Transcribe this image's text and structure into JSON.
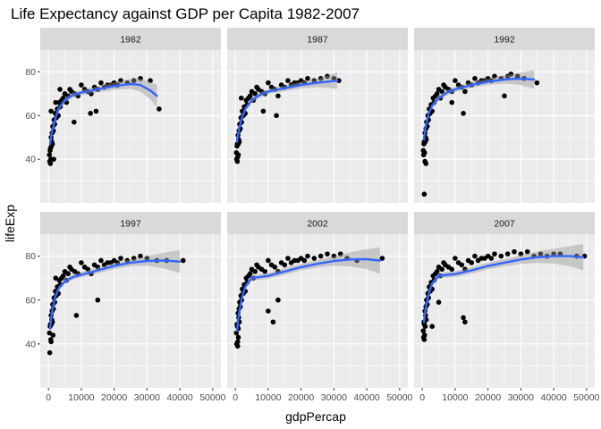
{
  "chart_data": {
    "type": "scatter",
    "title": "Life Expectancy against GDP per Capita 1982-2007",
    "xlabel": "gdpPercap",
    "ylabel": "lifeExp",
    "xlim": [
      -2500,
      52500
    ],
    "ylim": [
      20,
      90
    ],
    "xticks": [
      0,
      10000,
      20000,
      30000,
      40000,
      50000
    ],
    "yticks": [
      40,
      60,
      80
    ],
    "grid": true,
    "smooth": {
      "method": "loess",
      "color": "#3366ff",
      "ribbon_color": "#999999"
    },
    "colors": {
      "panel_bg": "#ebebeb",
      "strip_bg": "#d9d9d9",
      "grid": "#ffffff",
      "point": "#000000",
      "line": "#3366ff"
    },
    "facets": [
      {
        "label": "1982",
        "smooth_x": [
          500,
          1000,
          2000,
          3000,
          5000,
          7500,
          10000,
          15000,
          20000,
          25000,
          28000,
          31000,
          33000
        ],
        "smooth_y": [
          47,
          52,
          58,
          63,
          67,
          69.5,
          70.5,
          72,
          73.5,
          74.5,
          74,
          71.5,
          69
        ],
        "smooth_se": [
          1.5,
          1.2,
          1.0,
          1.0,
          1.1,
          1.2,
          1.2,
          1.4,
          1.7,
          2.3,
          3.0,
          4.0,
          5.2
        ],
        "points_x": [
          300,
          400,
          500,
          600,
          700,
          800,
          900,
          1000,
          1100,
          1200,
          1300,
          1500,
          1700,
          1900,
          2100,
          2400,
          2700,
          3000,
          3300,
          3600,
          4000,
          4500,
          5000,
          5500,
          6000,
          6500,
          7000,
          8000,
          9000,
          10000,
          11000,
          12000,
          13000,
          14000,
          15000,
          16000,
          17000,
          18000,
          19000,
          20000,
          21000,
          22000,
          24000,
          26000,
          28000,
          31000,
          33700,
          14500,
          12800,
          1600,
          2200,
          800,
          600,
          3500,
          7800
        ],
        "points_y": [
          42,
          39,
          44,
          45,
          40,
          50,
          46,
          48,
          52,
          47,
          55,
          53,
          58,
          56,
          61,
          59,
          63,
          60,
          66,
          64,
          67,
          68,
          70,
          66,
          69,
          72,
          71,
          70,
          69,
          74,
          72,
          71,
          70,
          73,
          72,
          75,
          73,
          74,
          74,
          75,
          74,
          76,
          75,
          76,
          77,
          76,
          63,
          62,
          61,
          40,
          66,
          62,
          38,
          72,
          57
        ]
      },
      {
        "label": "1987",
        "smooth_x": [
          500,
          1000,
          2000,
          3000,
          5000,
          7500,
          10000,
          15000,
          20000,
          25000,
          28000,
          31000
        ],
        "smooth_y": [
          48,
          53,
          59,
          63,
          67,
          69.5,
          71,
          72.5,
          74,
          75,
          75.5,
          76
        ],
        "smooth_se": [
          1.5,
          1.2,
          1.0,
          1.0,
          1.1,
          1.2,
          1.2,
          1.3,
          1.5,
          2.0,
          2.8,
          3.8
        ],
        "points_x": [
          300,
          400,
          500,
          600,
          700,
          800,
          900,
          1000,
          1100,
          1200,
          1300,
          1500,
          1700,
          1900,
          2100,
          2400,
          2700,
          3000,
          3300,
          3600,
          4000,
          4500,
          5000,
          5500,
          6000,
          6500,
          7000,
          8000,
          9000,
          10000,
          11000,
          12000,
          13000,
          14000,
          15000,
          16000,
          17000,
          18000,
          19000,
          20000,
          21000,
          22000,
          24000,
          26000,
          28000,
          30000,
          31500,
          600,
          900,
          12500,
          8500,
          1800
        ],
        "points_y": [
          43,
          40,
          46,
          47,
          41,
          51,
          47,
          49,
          53,
          48,
          56,
          54,
          59,
          57,
          62,
          60,
          64,
          61,
          67,
          65,
          68,
          69,
          71,
          67,
          70,
          73,
          72,
          71,
          70,
          75,
          73,
          72,
          69,
          74,
          73,
          76,
          74,
          75,
          75,
          76,
          75,
          77,
          76,
          77,
          78,
          77,
          76,
          39,
          42,
          60,
          62,
          68
        ]
      },
      {
        "label": "1992",
        "smooth_x": [
          500,
          1000,
          2000,
          3000,
          5000,
          7500,
          10000,
          15000,
          20000,
          25000,
          28000,
          31000,
          34000
        ],
        "smooth_y": [
          49,
          55,
          61,
          64.5,
          68,
          70.5,
          72,
          74,
          75.5,
          76.5,
          76.8,
          76.8,
          76.5
        ],
        "smooth_se": [
          1.5,
          1.2,
          1.0,
          1.0,
          1.1,
          1.2,
          1.2,
          1.3,
          1.5,
          1.9,
          2.4,
          3.2,
          4.2
        ],
        "points_x": [
          300,
          400,
          500,
          600,
          700,
          800,
          900,
          1000,
          1100,
          1200,
          1300,
          1500,
          1700,
          1900,
          2100,
          2400,
          2700,
          3000,
          3300,
          3600,
          4000,
          4500,
          5000,
          5500,
          6000,
          6500,
          7000,
          8000,
          9000,
          10000,
          11000,
          12000,
          13000,
          14000,
          15000,
          16000,
          17000,
          18000,
          19000,
          20000,
          21000,
          22000,
          24000,
          26000,
          27000,
          29000,
          31000,
          34900,
          600,
          800,
          1100,
          12500,
          9000,
          25000
        ],
        "points_y": [
          44,
          42,
          47,
          48,
          43,
          52,
          48,
          50,
          54,
          49,
          57,
          55,
          60,
          58,
          63,
          61,
          65,
          62,
          68,
          66,
          69,
          70,
          72,
          68,
          71,
          74,
          73,
          72,
          71,
          76,
          74,
          73,
          71,
          75,
          74,
          77,
          75,
          76,
          76,
          77,
          76,
          78,
          77,
          78,
          79,
          78,
          77,
          75,
          24,
          39,
          38,
          61,
          66,
          69
        ]
      },
      {
        "label": "1997",
        "smooth_x": [
          500,
          1000,
          2000,
          3000,
          5000,
          7500,
          10000,
          15000,
          20000,
          25000,
          30000,
          35000,
          40000
        ],
        "smooth_y": [
          47,
          54,
          61,
          65,
          68.5,
          70.5,
          71.5,
          73.5,
          75.5,
          77,
          77.8,
          78,
          77.5
        ],
        "smooth_se": [
          1.5,
          1.2,
          1.0,
          1.0,
          1.1,
          1.2,
          1.2,
          1.3,
          1.4,
          1.6,
          2.2,
          3.5,
          5.2
        ],
        "points_x": [
          300,
          400,
          500,
          600,
          700,
          800,
          900,
          1000,
          1100,
          1200,
          1300,
          1500,
          1700,
          1900,
          2100,
          2400,
          2700,
          3000,
          3300,
          3600,
          4000,
          4500,
          5000,
          5500,
          6000,
          6500,
          7000,
          8000,
          9000,
          10000,
          11000,
          12000,
          13000,
          14000,
          15000,
          16000,
          17000,
          18000,
          19000,
          20000,
          21000,
          22000,
          24000,
          26000,
          28000,
          30000,
          33000,
          36000,
          41000,
          800,
          1400,
          15000,
          8500,
          2200
        ],
        "points_y": [
          45,
          36,
          48,
          49,
          42,
          53,
          49,
          51,
          55,
          50,
          58,
          56,
          61,
          59,
          64,
          62,
          66,
          63,
          69,
          67,
          70,
          71,
          73,
          69,
          72,
          75,
          74,
          73,
          72,
          77,
          75,
          74,
          72,
          76,
          75,
          78,
          76,
          77,
          77,
          78,
          77,
          79,
          78,
          79,
          80,
          79,
          78,
          78,
          78,
          41,
          44,
          60,
          53,
          70
        ]
      },
      {
        "label": "2002",
        "smooth_x": [
          500,
          1000,
          2000,
          3000,
          5000,
          7500,
          10000,
          15000,
          20000,
          25000,
          30000,
          35000,
          40000,
          44000
        ],
        "smooth_y": [
          46,
          53,
          61,
          66,
          70,
          70.5,
          71,
          73,
          75,
          76.5,
          77.8,
          78.5,
          78.6,
          78
        ],
        "smooth_se": [
          1.5,
          1.2,
          1.0,
          1.0,
          1.1,
          1.3,
          1.3,
          1.4,
          1.5,
          1.7,
          2.2,
          3.2,
          4.6,
          6.0
        ],
        "points_x": [
          300,
          400,
          500,
          600,
          700,
          800,
          900,
          1000,
          1100,
          1200,
          1300,
          1500,
          1700,
          1900,
          2100,
          2400,
          2700,
          3000,
          3300,
          3600,
          4000,
          4500,
          5000,
          5500,
          6000,
          6500,
          7000,
          8000,
          9000,
          10000,
          11000,
          12000,
          13000,
          14000,
          15000,
          16000,
          17000,
          18000,
          19000,
          20000,
          21000,
          22000,
          24000,
          26000,
          28000,
          30000,
          32000,
          34000,
          37000,
          44700,
          700,
          900,
          10000,
          11500,
          13000
        ],
        "points_y": [
          45,
          40,
          49,
          48,
          41,
          54,
          47,
          52,
          56,
          50,
          59,
          57,
          62,
          60,
          65,
          63,
          67,
          64,
          70,
          68,
          71,
          72,
          74,
          70,
          73,
          76,
          75,
          74,
          73,
          78,
          76,
          75,
          73,
          77,
          76,
          79,
          77,
          78,
          78,
          79,
          78,
          80,
          79,
          80,
          81,
          80,
          81,
          79,
          78,
          79,
          39,
          43,
          55,
          50,
          60
        ]
      },
      {
        "label": "2007",
        "smooth_x": [
          500,
          1000,
          2000,
          3000,
          5000,
          7500,
          10000,
          15000,
          20000,
          25000,
          30000,
          35000,
          40000,
          45000,
          49000
        ],
        "smooth_y": [
          50,
          56,
          63,
          67.5,
          71,
          71.5,
          71.8,
          73.5,
          75.5,
          77,
          78.5,
          79.5,
          80,
          80,
          79.5
        ],
        "smooth_se": [
          1.5,
          1.2,
          1.0,
          1.0,
          1.1,
          1.3,
          1.3,
          1.4,
          1.5,
          1.6,
          2.0,
          2.6,
          3.4,
          4.6,
          6.0
        ],
        "points_x": [
          300,
          400,
          500,
          600,
          700,
          800,
          900,
          1000,
          1100,
          1200,
          1300,
          1500,
          1700,
          1900,
          2100,
          2400,
          2700,
          3000,
          3300,
          3600,
          4000,
          4500,
          5000,
          5500,
          6000,
          6500,
          7000,
          8000,
          9000,
          10000,
          11000,
          12000,
          13000,
          14000,
          15000,
          16000,
          17000,
          18000,
          19000,
          20000,
          21000,
          22000,
          24000,
          26000,
          28000,
          30000,
          32000,
          34000,
          36000,
          38000,
          40000,
          42000,
          47000,
          49400,
          600,
          12500,
          13000,
          3000,
          5000
        ],
        "points_y": [
          46,
          43,
          50,
          49,
          44,
          55,
          48,
          53,
          57,
          51,
          60,
          58,
          63,
          61,
          66,
          64,
          68,
          65,
          71,
          69,
          72,
          73,
          75,
          71,
          74,
          77,
          76,
          75,
          74,
          79,
          77,
          76,
          74,
          78,
          77,
          80,
          78,
          79,
          79,
          80,
          79,
          81,
          80,
          81,
          82,
          81,
          82,
          80,
          81,
          80,
          81,
          81,
          80,
          80,
          42,
          52,
          50,
          48,
          59
        ]
      }
    ]
  }
}
